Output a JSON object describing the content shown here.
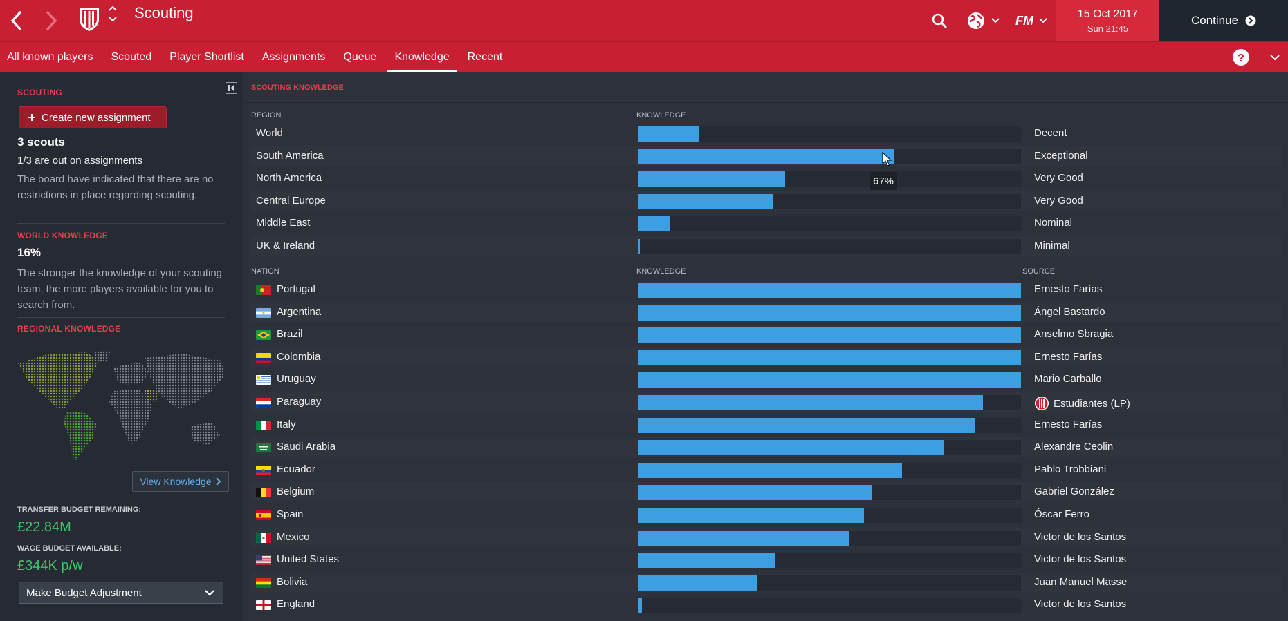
{
  "header": {
    "title": "Scouting",
    "date": "15 Oct 2017",
    "time": "Sun 21:45",
    "continue_label": "Continue",
    "fm_label": "FM"
  },
  "tabs": [
    {
      "label": "All known players"
    },
    {
      "label": "Scouted"
    },
    {
      "label": "Player Shortlist"
    },
    {
      "label": "Assignments"
    },
    {
      "label": "Queue"
    },
    {
      "label": "Knowledge",
      "active": true
    },
    {
      "label": "Recent"
    }
  ],
  "sidebar": {
    "heading": "SCOUTING",
    "create_label": "Create new assignment",
    "scouts_count": "3 scouts",
    "assignments_text": "1/3 are out on assignments",
    "board_text": "The board have indicated that there are no restrictions in place regarding scouting.",
    "world_knowledge_heading": "WORLD KNOWLEDGE",
    "world_knowledge_value": "16%",
    "world_knowledge_text": "The stronger the knowledge of your scouting team, the more players available for you to search from.",
    "regional_heading": "REGIONAL KNOWLEDGE",
    "view_knowledge_label": "View Knowledge",
    "transfer_label": "TRANSFER BUDGET REMAINING:",
    "transfer_value": "£22.84M",
    "wage_label": "WAGE BUDGET AVAILABLE:",
    "wage_value": "£344K p/w",
    "budget_select_label": "Make Budget Adjustment"
  },
  "main": {
    "heading": "SCOUTING KNOWLEDGE",
    "region_col": "REGION",
    "knowledge_col": "KNOWLEDGE",
    "nation_col": "NATION",
    "source_col": "SOURCE",
    "tooltip": "67%"
  },
  "regions": [
    {
      "name": "World",
      "level": 0.16,
      "rating": "Decent"
    },
    {
      "name": "South America",
      "level": 0.67,
      "rating": "Exceptional"
    },
    {
      "name": "North America",
      "level": 0.385,
      "rating": "Very Good"
    },
    {
      "name": "Central Europe",
      "level": 0.353,
      "rating": "Very Good"
    },
    {
      "name": "Middle East",
      "level": 0.085,
      "rating": "Nominal"
    },
    {
      "name": "UK & Ireland",
      "level": 0.005,
      "rating": "Minimal"
    }
  ],
  "nations": [
    {
      "name": "Portugal",
      "flag": "portugal-flag",
      "level": 1.0,
      "source": "Ernesto Farías"
    },
    {
      "name": "Argentina",
      "flag": "argentina-flag",
      "level": 1.0,
      "source": "Ángel Bastardo"
    },
    {
      "name": "Brazil",
      "flag": "brazil-flag",
      "level": 1.0,
      "source": "Anselmo Sbragia"
    },
    {
      "name": "Colombia",
      "flag": "colombia-flag",
      "level": 1.0,
      "source": "Ernesto Farías"
    },
    {
      "name": "Uruguay",
      "flag": "uruguay-flag",
      "level": 1.0,
      "source": "Mario Carballo"
    },
    {
      "name": "Paraguay",
      "flag": "paraguay-flag",
      "level": 0.9,
      "source": "Estudiantes (LP)",
      "club": true
    },
    {
      "name": "Italy",
      "flag": "italy-flag",
      "level": 0.88,
      "source": "Ernesto Farías"
    },
    {
      "name": "Saudi Arabia",
      "flag": "saudi-arabia-flag",
      "level": 0.8,
      "source": "Alexandre Ceolin"
    },
    {
      "name": "Ecuador",
      "flag": "ecuador-flag",
      "level": 0.69,
      "source": "Pablo Trobbiani"
    },
    {
      "name": "Belgium",
      "flag": "belgium-flag",
      "level": 0.61,
      "source": "Gabriel González"
    },
    {
      "name": "Spain",
      "flag": "spain-flag",
      "level": 0.59,
      "source": "Óscar Ferro"
    },
    {
      "name": "Mexico",
      "flag": "mexico-flag",
      "level": 0.55,
      "source": "Victor de los Santos"
    },
    {
      "name": "United States",
      "flag": "united-states-flag",
      "level": 0.36,
      "source": "Victor de los Santos"
    },
    {
      "name": "Bolivia",
      "flag": "bolivia-flag",
      "level": 0.31,
      "source": "Juan Manuel Masse"
    },
    {
      "name": "England",
      "flag": "england-flag",
      "level": 0.01,
      "source": "Victor de los Santos"
    }
  ],
  "colors": {
    "header_red": "#c91f32",
    "bar_blue": "#3e9ee0",
    "budget_green": "#3fc46d",
    "heading_red": "#e0404f"
  }
}
